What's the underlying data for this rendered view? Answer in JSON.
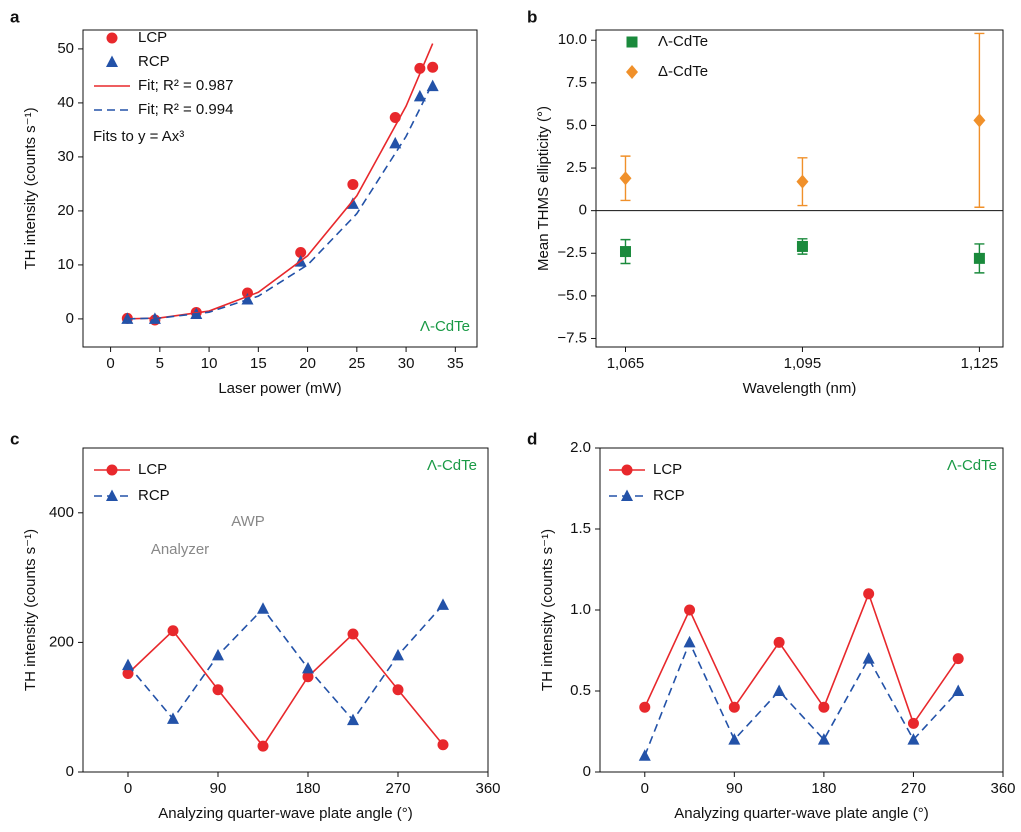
{
  "chart_data": [
    {
      "type": "scatter",
      "panel": "a",
      "xlabel": "Laser power (mW)",
      "ylabel": "TH intensity (counts s⁻¹)",
      "xlim": [
        -2.8,
        37.2
      ],
      "ylim": [
        -5.2,
        53.5
      ],
      "xticks": [
        0,
        5,
        10,
        15,
        20,
        25,
        30,
        35
      ],
      "yticks": [
        0,
        10,
        20,
        30,
        40,
        50
      ],
      "series": [
        {
          "name": "LCP",
          "color": "#e8282c",
          "mode": "markers",
          "marker": "circle",
          "x": [
            1.7,
            4.5,
            8.7,
            13.9,
            19.3,
            24.6,
            28.9,
            31.4,
            32.7
          ],
          "values": [
            0.1,
            -0.2,
            1.2,
            4.8,
            12.3,
            24.9,
            37.3,
            46.4,
            46.6
          ]
        },
        {
          "name": "RCP",
          "color": "#2352a8",
          "mode": "markers",
          "marker": "triangle",
          "x": [
            1.7,
            4.5,
            8.7,
            13.9,
            19.3,
            24.6,
            28.9,
            31.4,
            32.7
          ],
          "values": [
            0,
            0,
            0.9,
            3.6,
            10.6,
            21.3,
            32.5,
            41.2,
            43.1
          ]
        },
        {
          "name": "Fit; R² = 0.987",
          "color": "#e8282c",
          "mode": "line",
          "dash": false,
          "x": [
            1.7,
            5,
            10,
            15,
            20,
            25,
            30,
            32.7
          ],
          "values": [
            0.007,
            0.18,
            1.46,
            4.93,
            11.7,
            22.8,
            39.4,
            51.0
          ]
        },
        {
          "name": "Fit; R² = 0.994",
          "color": "#2352a8",
          "mode": "line",
          "dash": true,
          "x": [
            1.7,
            5,
            10,
            15,
            20,
            25,
            30,
            32.7
          ],
          "values": [
            0.006,
            0.16,
            1.25,
            4.22,
            10.0,
            19.5,
            33.8,
            43.7
          ]
        }
      ],
      "annotations": [
        {
          "text": "Fits to y = Ax³",
          "color": "#111111"
        },
        {
          "text": "Λ-CdTe",
          "color": "#1a9a46"
        }
      ]
    },
    {
      "type": "errorbar",
      "panel": "b",
      "xlabel": "Wavelength (nm)",
      "ylabel": "Mean THMS ellipticity (°)",
      "xlim": [
        1060,
        1129
      ],
      "ylim": [
        -8,
        10.6
      ],
      "xticks": [
        {
          "value": 1065,
          "label": "1,065"
        },
        {
          "value": 1095,
          "label": "1,095"
        },
        {
          "value": 1125,
          "label": "1,125"
        }
      ],
      "yticks": [
        {
          "value": -7.5,
          "label": "−7.5"
        },
        {
          "value": -5,
          "label": "−5.0"
        },
        {
          "value": -2.5,
          "label": "−2.5"
        },
        0,
        {
          "value": 2.5,
          "label": "2.5"
        },
        {
          "value": 5,
          "label": "5.0"
        },
        {
          "value": 7.5,
          "label": "7.5"
        },
        {
          "value": 10,
          "label": "10.0"
        }
      ],
      "zero_line": true,
      "x": [
        1065,
        1095,
        1125
      ],
      "series": [
        {
          "name": "Λ-CdTe",
          "color": "#1a8a3c",
          "mode": "markers",
          "marker": "square",
          "values": [
            -2.4,
            -2.1,
            -2.8
          ],
          "errors": [
            0.7,
            0.45,
            0.85
          ]
        },
        {
          "name": "Δ-CdTe",
          "color": "#f0902a",
          "mode": "markers",
          "marker": "diamond",
          "values": [
            1.9,
            1.7,
            5.3
          ],
          "errors": [
            1.3,
            1.4,
            5.1
          ]
        }
      ],
      "annotations": []
    },
    {
      "type": "line",
      "panel": "c",
      "xlabel": "Analyzing quarter-wave plate angle (°)",
      "ylabel": "TH intensity (counts s⁻¹)",
      "xlim": [
        -45,
        360
      ],
      "ylim": [
        0,
        500
      ],
      "xticks": [
        0,
        90,
        180,
        270,
        360
      ],
      "yticks": [
        0,
        200,
        400
      ],
      "x": [
        0,
        45,
        90,
        135,
        180,
        225,
        270,
        315
      ],
      "series": [
        {
          "name": "LCP",
          "color": "#e8282c",
          "mode": "lines+markers",
          "marker": "circle",
          "dash": false,
          "values": [
            152,
            218,
            127,
            40,
            147,
            213,
            127,
            42
          ]
        },
        {
          "name": "RCP",
          "color": "#2352a8",
          "mode": "lines+markers",
          "marker": "triangle",
          "dash": true,
          "values": [
            165,
            82,
            180,
            252,
            160,
            80,
            180,
            258
          ]
        }
      ],
      "annotations": [
        {
          "text": "Λ-CdTe",
          "color": "#1a9a46"
        },
        {
          "text": "AWP",
          "color": "#888888"
        },
        {
          "text": "Analyzer",
          "color": "#888888"
        }
      ]
    },
    {
      "type": "line",
      "panel": "d",
      "xlabel": "Analyzing quarter-wave plate angle (°)",
      "ylabel": "TH intensity (counts s⁻¹)",
      "xlim": [
        -45,
        360
      ],
      "ylim": [
        0,
        2
      ],
      "xticks": [
        0,
        90,
        180,
        270,
        360
      ],
      "yticks": [
        0,
        0.5,
        {
          "value": 1,
          "label": "1.0"
        },
        1.5,
        {
          "value": 2,
          "label": "2.0"
        }
      ],
      "x": [
        0,
        45,
        90,
        135,
        180,
        225,
        270,
        315
      ],
      "series": [
        {
          "name": "LCP",
          "color": "#e8282c",
          "mode": "lines+markers",
          "marker": "circle",
          "dash": false,
          "values": [
            0.4,
            1.0,
            0.4,
            0.8,
            0.4,
            1.1,
            0.3,
            0.7
          ]
        },
        {
          "name": "RCP",
          "color": "#2352a8",
          "mode": "lines+markers",
          "marker": "triangle",
          "dash": true,
          "values": [
            0.1,
            0.8,
            0.2,
            0.5,
            0.2,
            0.7,
            0.2,
            0.5
          ]
        }
      ],
      "annotations": [
        {
          "text": "Λ-CdTe",
          "color": "#1a9a46"
        }
      ]
    }
  ]
}
